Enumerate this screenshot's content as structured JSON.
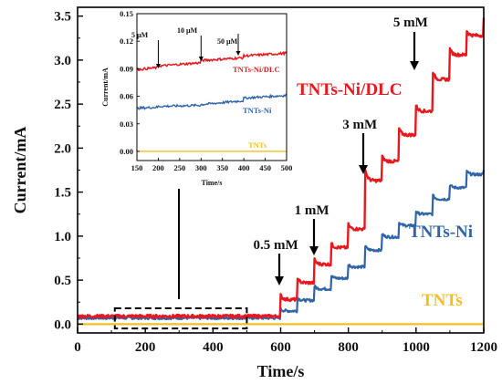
{
  "chart_data": [
    {
      "type": "line",
      "xlabel": "Time/s",
      "ylabel": "Current/mA",
      "xlim": [
        0,
        1200
      ],
      "ylim": [
        -0.1,
        3.6
      ],
      "xticks": [
        "0",
        "200",
        "400",
        "600",
        "800",
        "1000",
        "1200"
      ],
      "yticks": [
        "0.0",
        "0.5",
        "1.0",
        "1.5",
        "2.0",
        "2.5",
        "3.0",
        "3.5"
      ],
      "step_times": [
        600,
        650,
        700,
        750,
        800,
        850,
        900,
        950,
        1000,
        1050,
        1100,
        1150
      ],
      "series": [
        {
          "name": "TNTs-Ni/DLC",
          "color": "#e8191e",
          "x": [
            0,
            600,
            650,
            700,
            750,
            800,
            850,
            900,
            950,
            1000,
            1050,
            1100,
            1150,
            1200
          ],
          "values": [
            0.09,
            0.28,
            0.47,
            0.68,
            0.87,
            1.08,
            1.63,
            1.85,
            2.15,
            2.42,
            2.78,
            3.06,
            3.28,
            3.48
          ]
        },
        {
          "name": "TNTs-Ni",
          "color": "#2f64a8",
          "x": [
            0,
            600,
            650,
            700,
            750,
            800,
            850,
            900,
            950,
            1000,
            1050,
            1100,
            1150,
            1200
          ],
          "values": [
            0.07,
            0.15,
            0.27,
            0.4,
            0.52,
            0.65,
            0.84,
            0.99,
            1.12,
            1.25,
            1.42,
            1.55,
            1.7,
            1.75
          ]
        },
        {
          "name": "TNTs",
          "color": "#f0c020",
          "x": [
            0,
            1200
          ],
          "values": [
            0.0,
            0.0
          ]
        }
      ],
      "annotations": [
        {
          "text": "0.5 mM",
          "x": 600
        },
        {
          "text": "1 mM",
          "x": 700
        },
        {
          "text": "3 mM",
          "x": 850
        },
        {
          "text": "5 mM",
          "x": 1000
        }
      ],
      "zoom_box": {
        "x": [
          110,
          500
        ],
        "y": [
          -0.05,
          0.18
        ]
      }
    },
    {
      "type": "line",
      "xlabel": "Time/s",
      "ylabel": "Current/mA",
      "xlim": [
        150,
        500
      ],
      "ylim": [
        -0.01,
        0.15
      ],
      "xticks": [
        "150",
        "200",
        "250",
        "300",
        "350",
        "400",
        "450",
        "500"
      ],
      "yticks": [
        "0.00",
        "0.03",
        "0.06",
        "0.09",
        "0.12",
        "0.15"
      ],
      "series": [
        {
          "name": "TNTs-Ni/DLC",
          "color": "#e8191e",
          "x": [
            150,
            200,
            300,
            400,
            500
          ],
          "values": [
            0.089,
            0.093,
            0.099,
            0.104,
            0.109
          ]
        },
        {
          "name": "TNTs-Ni",
          "color": "#2f64a8",
          "x": [
            150,
            200,
            300,
            400,
            500
          ],
          "values": [
            0.047,
            0.049,
            0.051,
            0.058,
            0.063
          ]
        },
        {
          "name": "TNTs",
          "color": "#f0c020",
          "x": [
            150,
            500
          ],
          "values": [
            0.0,
            0.0
          ]
        }
      ],
      "annotations": [
        {
          "text": "5 µM",
          "x": 200
        },
        {
          "text": "10 µM",
          "x": 300
        },
        {
          "text": "50 µM",
          "x": 400
        }
      ]
    }
  ]
}
